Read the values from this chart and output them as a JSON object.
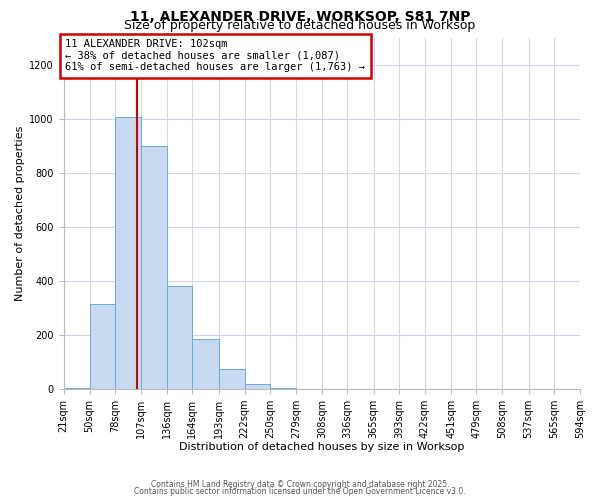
{
  "title": "11, ALEXANDER DRIVE, WORKSOP, S81 7NP",
  "subtitle": "Size of property relative to detached houses in Worksop",
  "xlabel": "Distribution of detached houses by size in Worksop",
  "ylabel": "Number of detached properties",
  "bar_edges": [
    21,
    50,
    78,
    107,
    136,
    164,
    193,
    222,
    250,
    279,
    308,
    336,
    365,
    393,
    422,
    451,
    479,
    508,
    537,
    565,
    594
  ],
  "bar_heights": [
    5,
    315,
    1005,
    900,
    380,
    185,
    75,
    20,
    5,
    0,
    0,
    0,
    0,
    0,
    0,
    0,
    0,
    0,
    0,
    0
  ],
  "bar_color": "#c8daf0",
  "bar_edgecolor": "#6aaad4",
  "property_line_x": 102,
  "annotation_text": "11 ALEXANDER DRIVE: 102sqm\n← 38% of detached houses are smaller (1,087)\n61% of semi-detached houses are larger (1,763) →",
  "annotation_box_edgecolor": "#cc0000",
  "annotation_line_color": "#cc0000",
  "ylim": [
    0,
    1300
  ],
  "yticks": [
    0,
    200,
    400,
    600,
    800,
    1000,
    1200
  ],
  "tick_labels": [
    "21sqm",
    "50sqm",
    "78sqm",
    "107sqm",
    "136sqm",
    "164sqm",
    "193sqm",
    "222sqm",
    "250sqm",
    "279sqm",
    "308sqm",
    "336sqm",
    "365sqm",
    "393sqm",
    "422sqm",
    "451sqm",
    "479sqm",
    "508sqm",
    "537sqm",
    "565sqm",
    "594sqm"
  ],
  "footer_line1": "Contains HM Land Registry data © Crown copyright and database right 2025.",
  "footer_line2": "Contains public sector information licensed under the Open Government Licence v3.0.",
  "bg_color": "#ffffff",
  "grid_color": "#d0d8e8",
  "title_fontsize": 10,
  "subtitle_fontsize": 9,
  "xlabel_fontsize": 8,
  "ylabel_fontsize": 8,
  "tick_fontsize": 7,
  "footer_fontsize": 5.5
}
